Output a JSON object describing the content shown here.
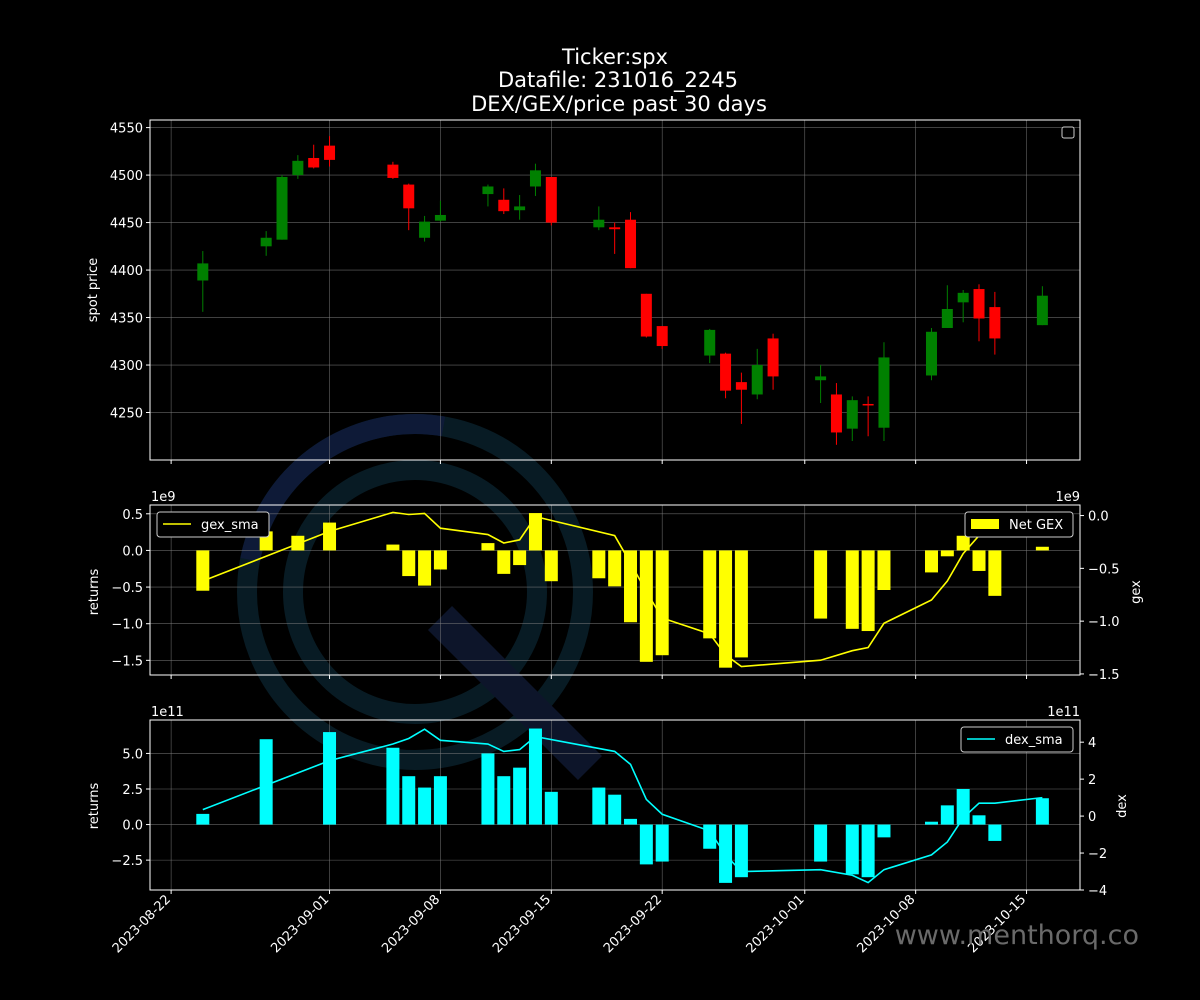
{
  "figure": {
    "title_lines": [
      "Ticker:spx",
      "Datafile: 231016_2245",
      "DEX/GEX/price past 30 days"
    ],
    "watermark": "www.menthorq.co",
    "colors": {
      "background": "#000000",
      "up": "#008000",
      "down": "#ff0000",
      "gex": "#ffff00",
      "dex": "#00ffff",
      "grid": "#808080",
      "text": "#ffffff"
    }
  },
  "chart_data": [
    {
      "type": "candlestick",
      "ylabel": "spot price",
      "ylim": [
        4200,
        4558
      ],
      "yticks": [
        "4250",
        "4300",
        "4350",
        "4400",
        "4450",
        "4500",
        "4550"
      ],
      "legend": {
        "placement": "top-right",
        "entries": []
      },
      "candles": [
        {
          "date": "2023-08-24",
          "open": 4389,
          "high": 4420,
          "low": 4356,
          "close": 4407
        },
        {
          "date": "2023-08-28",
          "open": 4425,
          "high": 4441,
          "low": 4415,
          "close": 4434
        },
        {
          "date": "2023-08-29",
          "open": 4432,
          "high": 4500,
          "low": 4432,
          "close": 4498
        },
        {
          "date": "2023-08-30",
          "open": 4500,
          "high": 4521,
          "low": 4496,
          "close": 4515
        },
        {
          "date": "2023-08-31",
          "open": 4518,
          "high": 4532,
          "low": 4507,
          "close": 4508
        },
        {
          "date": "2023-09-01",
          "open": 4531,
          "high": 4541,
          "low": 4509,
          "close": 4516
        },
        {
          "date": "2023-09-05",
          "open": 4511,
          "high": 4514,
          "low": 4496,
          "close": 4497
        },
        {
          "date": "2023-09-06",
          "open": 4490,
          "high": 4491,
          "low": 4442,
          "close": 4465
        },
        {
          "date": "2023-09-07",
          "open": 4434,
          "high": 4457,
          "low": 4430,
          "close": 4451
        },
        {
          "date": "2023-09-08",
          "open": 4452,
          "high": 4473,
          "low": 4451,
          "close": 4458
        },
        {
          "date": "2023-09-11",
          "open": 4480,
          "high": 4490,
          "low": 4467,
          "close": 4488
        },
        {
          "date": "2023-09-12",
          "open": 4474,
          "high": 4486,
          "low": 4459,
          "close": 4462
        },
        {
          "date": "2023-09-13",
          "open": 4463,
          "high": 4479,
          "low": 4453,
          "close": 4467
        },
        {
          "date": "2023-09-14",
          "open": 4488,
          "high": 4512,
          "low": 4478,
          "close": 4505
        },
        {
          "date": "2023-09-15",
          "open": 4498,
          "high": 4498,
          "low": 4447,
          "close": 4450
        },
        {
          "date": "2023-09-18",
          "open": 4445,
          "high": 4467,
          "low": 4442,
          "close": 4453
        },
        {
          "date": "2023-09-19",
          "open": 4445,
          "high": 4450,
          "low": 4417,
          "close": 4443
        },
        {
          "date": "2023-09-20",
          "open": 4453,
          "high": 4461,
          "low": 4402,
          "close": 4402
        },
        {
          "date": "2023-09-21",
          "open": 4375,
          "high": 4375,
          "low": 4329,
          "close": 4330
        },
        {
          "date": "2023-09-22",
          "open": 4341,
          "high": 4341,
          "low": 4317,
          "close": 4320
        },
        {
          "date": "2023-09-25",
          "open": 4310,
          "high": 4338,
          "low": 4302,
          "close": 4337
        },
        {
          "date": "2023-09-26",
          "open": 4312,
          "high": 4313,
          "low": 4265,
          "close": 4273
        },
        {
          "date": "2023-09-27",
          "open": 4282,
          "high": 4292,
          "low": 4238,
          "close": 4274
        },
        {
          "date": "2023-09-28",
          "open": 4269,
          "high": 4317,
          "low": 4264,
          "close": 4300
        },
        {
          "date": "2023-09-29",
          "open": 4328,
          "high": 4333,
          "low": 4274,
          "close": 4288
        },
        {
          "date": "2023-10-02",
          "open": 4284,
          "high": 4300,
          "low": 4260,
          "close": 4288
        },
        {
          "date": "2023-10-03",
          "open": 4269,
          "high": 4281,
          "low": 4216,
          "close": 4229
        },
        {
          "date": "2023-10-04",
          "open": 4233,
          "high": 4267,
          "low": 4220,
          "close": 4263
        },
        {
          "date": "2023-10-05",
          "open": 4259,
          "high": 4267,
          "low": 4225,
          "close": 4258
        },
        {
          "date": "2023-10-06",
          "open": 4234,
          "high": 4324,
          "low": 4220,
          "close": 4308
        },
        {
          "date": "2023-10-09",
          "open": 4289,
          "high": 4339,
          "low": 4284,
          "close": 4335
        },
        {
          "date": "2023-10-10",
          "open": 4339,
          "high": 4384,
          "low": 4339,
          "close": 4359
        },
        {
          "date": "2023-10-11",
          "open": 4366,
          "high": 4379,
          "low": 4345,
          "close": 4376
        },
        {
          "date": "2023-10-12",
          "open": 4380,
          "high": 4385,
          "low": 4325,
          "close": 4349
        },
        {
          "date": "2023-10-13",
          "open": 4361,
          "high": 4377,
          "low": 4311,
          "close": 4328
        },
        {
          "date": "2023-10-16",
          "open": 4342,
          "high": 4383,
          "low": 4342,
          "close": 4373
        }
      ]
    },
    {
      "type": "bar+line",
      "ylabel_left": "returns",
      "ylabel_right": "gex",
      "offset_left": "1e9",
      "offset_right": "1e9",
      "ylim_left": [
        -1700000000.0,
        620000000.0
      ],
      "ylim_right": [
        -1510000000.0,
        100000000.0
      ],
      "yticks_left": [
        "−1.5",
        "−1.0",
        "−0.5",
        "0.0",
        "0.5"
      ],
      "yticks_right": [
        "−1.5",
        "−1.0",
        "−0.5",
        "0.0"
      ],
      "legend_left": {
        "placement": "top-left",
        "entries": [
          "gex_sma"
        ]
      },
      "legend_right": {
        "placement": "top-right",
        "entries": [
          "Net GEX"
        ]
      },
      "bars": {
        "name": "Net GEX",
        "x": [
          "2023-08-24",
          "2023-08-28",
          "2023-08-30",
          "2023-09-01",
          "2023-09-05",
          "2023-09-06",
          "2023-09-07",
          "2023-09-08",
          "2023-09-11",
          "2023-09-12",
          "2023-09-13",
          "2023-09-14",
          "2023-09-15",
          "2023-09-18",
          "2023-09-19",
          "2023-09-20",
          "2023-09-21",
          "2023-09-22",
          "2023-09-25",
          "2023-09-26",
          "2023-09-27",
          "2023-10-02",
          "2023-10-04",
          "2023-10-05",
          "2023-10-06",
          "2023-10-09",
          "2023-10-10",
          "2023-10-11",
          "2023-10-12",
          "2023-10-13",
          "2023-10-16"
        ],
        "values": [
          -550000000.0,
          260000000.0,
          200000000.0,
          380000000.0,
          80000000.0,
          -350000000.0,
          -480000000.0,
          -260000000.0,
          100000000.0,
          -320000000.0,
          -200000000.0,
          510000000.0,
          -420000000.0,
          -380000000.0,
          -490000000.0,
          -980000000.0,
          -1520000000.0,
          -1430000000.0,
          -1200000000.0,
          -1600000000.0,
          -1460000000.0,
          -930000000.0,
          -1070000000.0,
          -1100000000.0,
          -540000000.0,
          -300000000.0,
          -80000000.0,
          200000000.0,
          -280000000.0,
          -620000000.0,
          50000000.0
        ]
      },
      "line": {
        "name": "gex_sma",
        "x": [
          "2023-08-24",
          "2023-09-01",
          "2023-09-05",
          "2023-09-06",
          "2023-09-07",
          "2023-09-08",
          "2023-09-11",
          "2023-09-12",
          "2023-09-13",
          "2023-09-14",
          "2023-09-19",
          "2023-09-20",
          "2023-09-21",
          "2023-09-22",
          "2023-09-25",
          "2023-09-26",
          "2023-09-27",
          "2023-10-02",
          "2023-10-04",
          "2023-10-05",
          "2023-10-06",
          "2023-10-09",
          "2023-10-10",
          "2023-10-11",
          "2023-10-12",
          "2023-10-13",
          "2023-10-16"
        ],
        "values": [
          -620000000.0,
          -150000000.0,
          30000000.0,
          10000000.0,
          20000000.0,
          -120000000.0,
          -180000000.0,
          -260000000.0,
          -230000000.0,
          -10000000.0,
          -190000000.0,
          -450000000.0,
          -720000000.0,
          -970000000.0,
          -1120000000.0,
          -1320000000.0,
          -1430000000.0,
          -1370000000.0,
          -1280000000.0,
          -1250000000.0,
          -1020000000.0,
          -800000000.0,
          -620000000.0,
          -360000000.0,
          -190000000.0,
          -200000000.0,
          -140000000.0
        ]
      }
    },
    {
      "type": "bar+line",
      "ylabel_left": "returns",
      "ylabel_right": "dex",
      "offset_left": "1e11",
      "offset_right": "1e11",
      "ylim_left": [
        -460000000000.0,
        735000000000.0
      ],
      "ylim_right": [
        -400000000000.0,
        520000000000.0
      ],
      "yticks_left": [
        "−2.5",
        "0.0",
        "2.5",
        "5.0"
      ],
      "yticks_right": [
        "−4",
        "−2",
        "0",
        "2",
        "4"
      ],
      "legend_right": {
        "placement": "top-right",
        "entries": [
          "dex_sma"
        ]
      },
      "bars": {
        "x": [
          "2023-08-24",
          "2023-08-28",
          "2023-09-01",
          "2023-09-05",
          "2023-09-06",
          "2023-09-07",
          "2023-09-08",
          "2023-09-11",
          "2023-09-12",
          "2023-09-13",
          "2023-09-14",
          "2023-09-15",
          "2023-09-18",
          "2023-09-19",
          "2023-09-20",
          "2023-09-21",
          "2023-09-22",
          "2023-09-25",
          "2023-09-26",
          "2023-09-27",
          "2023-10-02",
          "2023-10-04",
          "2023-10-05",
          "2023-10-06",
          "2023-10-09",
          "2023-10-10",
          "2023-10-11",
          "2023-10-12",
          "2023-10-13",
          "2023-10-16"
        ],
        "values": [
          75000000000.0,
          600000000000.0,
          650000000000.0,
          540000000000.0,
          340000000000.0,
          260000000000.0,
          340000000000.0,
          500000000000.0,
          340000000000.0,
          400000000000.0,
          675000000000.0,
          230000000000.0,
          260000000000.0,
          210000000000.0,
          40000000000.0,
          -280000000000.0,
          -260000000000.0,
          -170000000000.0,
          -410000000000.0,
          -370000000000.0,
          -260000000000.0,
          -350000000000.0,
          -370000000000.0,
          -90000000000.0,
          20000000000.0,
          135000000000.0,
          250000000000.0,
          65000000000.0,
          -115000000000.0,
          185000000000.0
        ]
      },
      "line": {
        "name": "dex_sma",
        "x": [
          "2023-08-24",
          "2023-09-01",
          "2023-09-05",
          "2023-09-06",
          "2023-09-07",
          "2023-09-08",
          "2023-09-11",
          "2023-09-12",
          "2023-09-13",
          "2023-09-14",
          "2023-09-19",
          "2023-09-20",
          "2023-09-21",
          "2023-09-22",
          "2023-09-25",
          "2023-09-26",
          "2023-09-27",
          "2023-10-02",
          "2023-10-04",
          "2023-10-05",
          "2023-10-06",
          "2023-10-09",
          "2023-10-10",
          "2023-10-11",
          "2023-10-12",
          "2023-10-13",
          "2023-10-16"
        ],
        "values": [
          35000000000.0,
          300000000000.0,
          390000000000.0,
          420000000000.0,
          470000000000.0,
          410000000000.0,
          390000000000.0,
          350000000000.0,
          360000000000.0,
          430000000000.0,
          350000000000.0,
          280000000000.0,
          90000000000.0,
          10000000000.0,
          -80000000000.0,
          -210000000000.0,
          -300000000000.0,
          -290000000000.0,
          -320000000000.0,
          -360000000000.0,
          -290000000000.0,
          -210000000000.0,
          -140000000000.0,
          -10000000000.0,
          70000000000.0,
          70000000000.0,
          100000000000.0
        ]
      }
    }
  ],
  "x_axis": {
    "ticks": [
      "2023-08-22",
      "2023-09-01",
      "2023-09-08",
      "2023-09-15",
      "2023-09-22",
      "2023-10-01",
      "2023-10-08",
      "2023-10-15"
    ]
  }
}
